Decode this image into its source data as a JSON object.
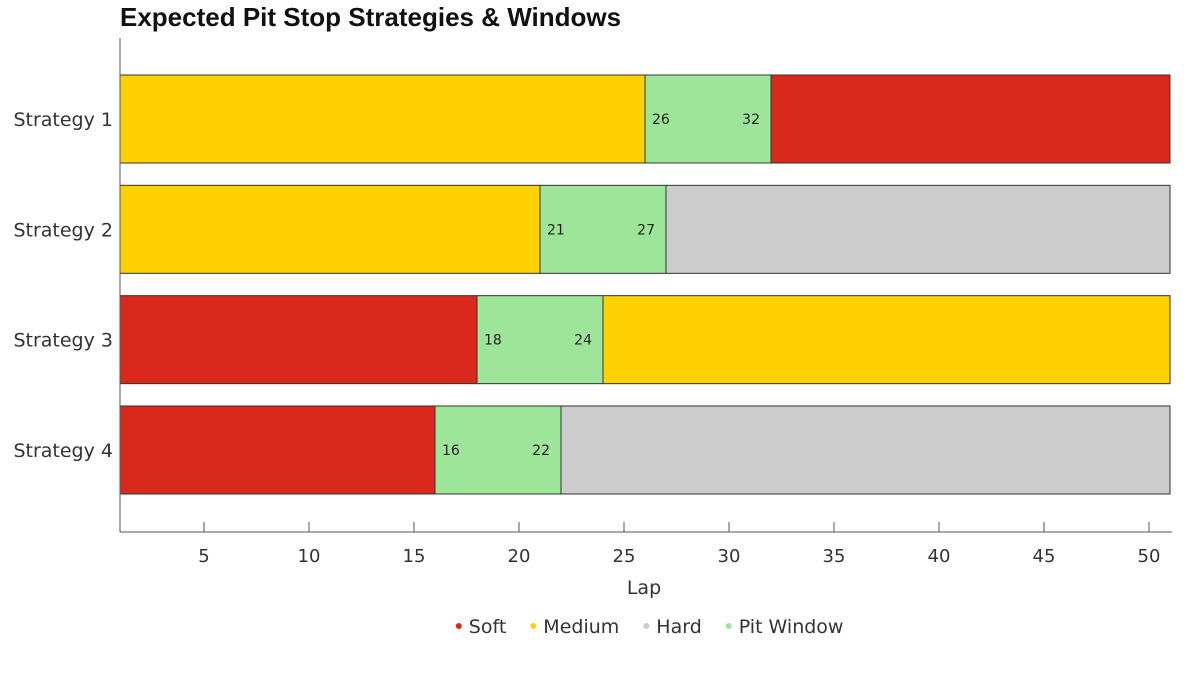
{
  "chart_data": {
    "type": "bar",
    "orientation": "horizontal",
    "title": "Expected Pit Stop Strategies & Windows",
    "xlabel": "Lap",
    "ylabel": "",
    "xlim": [
      1,
      51
    ],
    "xticks": [
      5,
      10,
      15,
      20,
      25,
      30,
      35,
      40,
      45,
      50
    ],
    "grid": false,
    "legend_position": "bottom",
    "compounds": [
      {
        "key": "soft",
        "name": "Soft",
        "color": "#da291c"
      },
      {
        "key": "medium",
        "name": "Medium",
        "color": "#ffd100"
      },
      {
        "key": "hard",
        "name": "Hard",
        "color": "#cccccc"
      },
      {
        "key": "window",
        "name": "Pit Window",
        "color": "#9de598"
      }
    ],
    "strategies": [
      {
        "name": "Strategy 1",
        "first": "medium",
        "window_start": 26,
        "window_end": 32,
        "second": "soft",
        "end_lap": 51
      },
      {
        "name": "Strategy 2",
        "first": "medium",
        "window_start": 21,
        "window_end": 27,
        "second": "hard",
        "end_lap": 51
      },
      {
        "name": "Strategy 3",
        "first": "soft",
        "window_start": 18,
        "window_end": 24,
        "second": "medium",
        "end_lap": 51
      },
      {
        "name": "Strategy 4",
        "first": "soft",
        "window_start": 16,
        "window_end": 22,
        "second": "hard",
        "end_lap": 51
      }
    ]
  }
}
